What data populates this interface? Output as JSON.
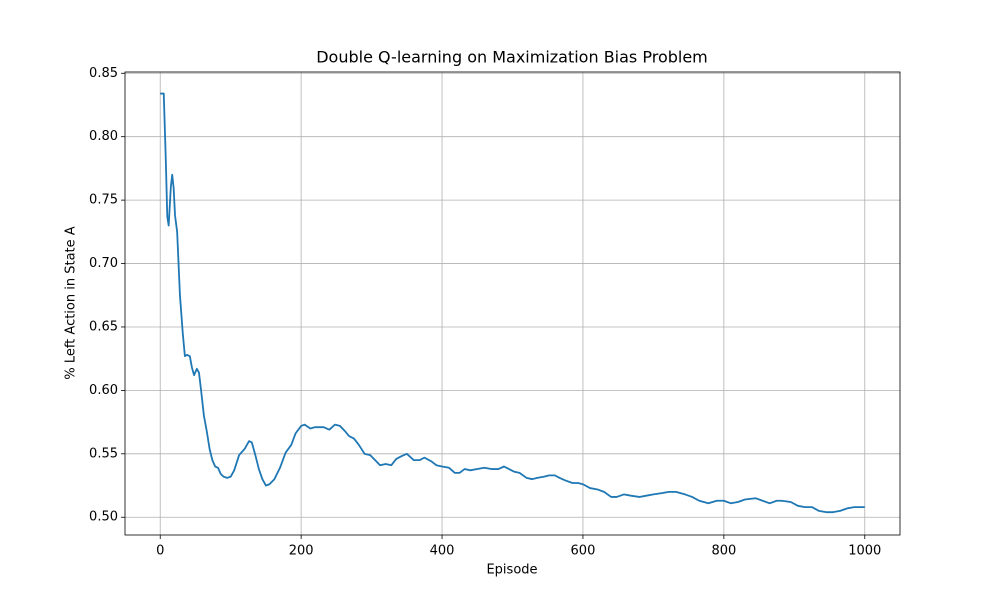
{
  "chart_data": {
    "type": "line",
    "title": "Double Q-learning on Maximization Bias Problem",
    "x_label": "Episode",
    "y_label": "% Left Action in State A",
    "xlim": [
      -50,
      1050
    ],
    "ylim": [
      0.486,
      0.851
    ],
    "xticks": [
      0,
      200,
      400,
      600,
      800,
      1000
    ],
    "yticks": [
      {
        "value": 0.5,
        "label": "0.50"
      },
      {
        "value": 0.55,
        "label": "0.55"
      },
      {
        "value": 0.6,
        "label": "0.60"
      },
      {
        "value": 0.65,
        "label": "0.65"
      },
      {
        "value": 0.7,
        "label": "0.70"
      },
      {
        "value": 0.75,
        "label": "0.75"
      },
      {
        "value": 0.8,
        "label": "0.80"
      },
      {
        "value": 0.85,
        "label": "0.85"
      }
    ],
    "grid": true,
    "color": "#1f77b4",
    "x": [
      0,
      5,
      8,
      10,
      12,
      15,
      17,
      19,
      21,
      24,
      28,
      32,
      35,
      38,
      42,
      45,
      48,
      52,
      55,
      58,
      62,
      66,
      70,
      74,
      78,
      82,
      86,
      90,
      95,
      100,
      105,
      112,
      120,
      126,
      130,
      135,
      140,
      145,
      150,
      155,
      162,
      170,
      178,
      186,
      192,
      200,
      205,
      213,
      220,
      232,
      240,
      248,
      255,
      262,
      268,
      275,
      282,
      290,
      298,
      305,
      312,
      320,
      328,
      335,
      342,
      350,
      360,
      368,
      375,
      385,
      392,
      400,
      410,
      418,
      425,
      432,
      440,
      450,
      460,
      470,
      480,
      488,
      495,
      502,
      510,
      520,
      528,
      535,
      545,
      552,
      560,
      567,
      575,
      585,
      593,
      600,
      610,
      620,
      630,
      640,
      648,
      658,
      668,
      680,
      690,
      700,
      712,
      722,
      732,
      745,
      755,
      765,
      778,
      790,
      800,
      810,
      820,
      830,
      845,
      855,
      865,
      875,
      882,
      895,
      905,
      915,
      925,
      935,
      945,
      955,
      965,
      975,
      985,
      1000
    ],
    "values": [
      0.834,
      0.834,
      0.78,
      0.737,
      0.73,
      0.76,
      0.77,
      0.76,
      0.738,
      0.725,
      0.675,
      0.645,
      0.627,
      0.628,
      0.627,
      0.618,
      0.612,
      0.617,
      0.614,
      0.6,
      0.58,
      0.568,
      0.554,
      0.545,
      0.54,
      0.539,
      0.534,
      0.532,
      0.531,
      0.532,
      0.537,
      0.549,
      0.554,
      0.56,
      0.559,
      0.549,
      0.538,
      0.53,
      0.525,
      0.526,
      0.53,
      0.539,
      0.551,
      0.557,
      0.566,
      0.572,
      0.573,
      0.57,
      0.571,
      0.571,
      0.569,
      0.573,
      0.572,
      0.568,
      0.564,
      0.562,
      0.557,
      0.55,
      0.549,
      0.545,
      0.541,
      0.542,
      0.541,
      0.546,
      0.548,
      0.55,
      0.545,
      0.545,
      0.547,
      0.544,
      0.541,
      0.54,
      0.539,
      0.535,
      0.535,
      0.538,
      0.537,
      0.538,
      0.539,
      0.538,
      0.538,
      0.54,
      0.538,
      0.536,
      0.535,
      0.531,
      0.53,
      0.531,
      0.532,
      0.533,
      0.533,
      0.531,
      0.529,
      0.527,
      0.527,
      0.526,
      0.523,
      0.522,
      0.52,
      0.516,
      0.516,
      0.518,
      0.517,
      0.516,
      0.517,
      0.518,
      0.519,
      0.52,
      0.52,
      0.518,
      0.516,
      0.513,
      0.511,
      0.513,
      0.513,
      0.511,
      0.512,
      0.514,
      0.515,
      0.513,
      0.511,
      0.513,
      0.513,
      0.512,
      0.509,
      0.508,
      0.508,
      0.505,
      0.504,
      0.504,
      0.505,
      0.507,
      0.508,
      0.508
    ]
  }
}
